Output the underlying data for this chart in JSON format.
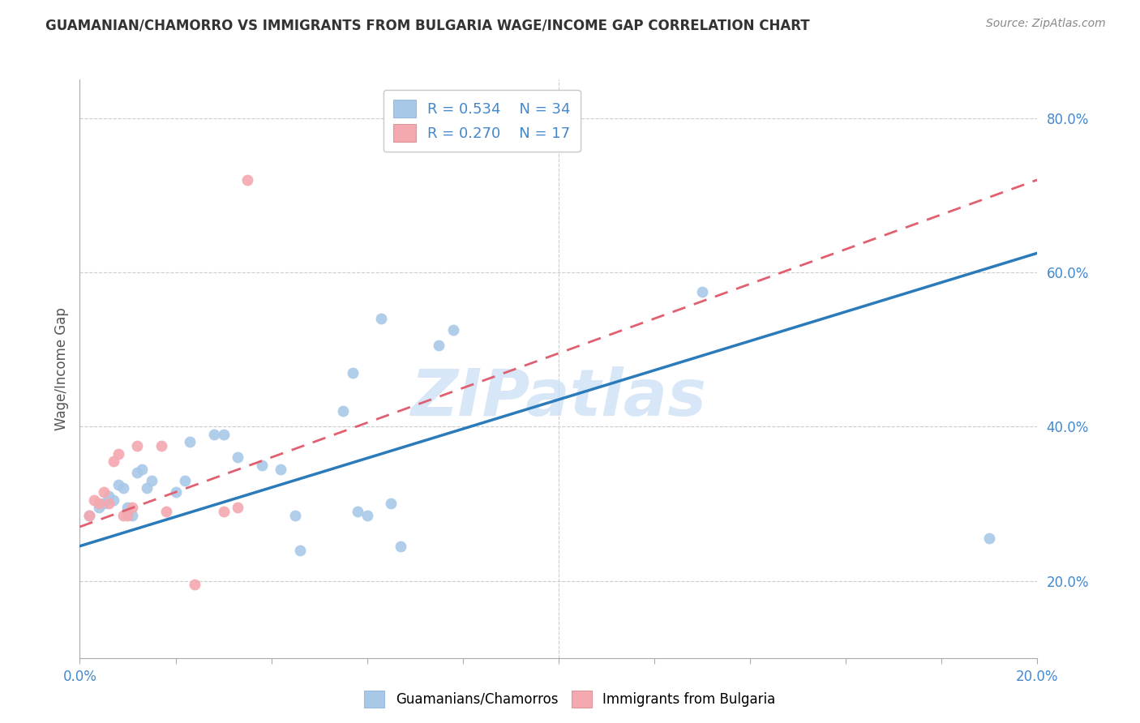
{
  "title": "GUAMANIAN/CHAMORRO VS IMMIGRANTS FROM BULGARIA WAGE/INCOME GAP CORRELATION CHART",
  "source": "Source: ZipAtlas.com",
  "ylabel": "Wage/Income Gap",
  "right_yticks": [
    0.2,
    0.4,
    0.6,
    0.8
  ],
  "right_yticklabels": [
    "20.0%",
    "40.0%",
    "60.0%",
    "80.0%"
  ],
  "legend_r1": "R = 0.534",
  "legend_n1": "N = 34",
  "legend_r2": "R = 0.270",
  "legend_n2": "N = 17",
  "legend_label1": "Guamanians/Chamorros",
  "legend_label2": "Immigrants from Bulgaria",
  "blue_color": "#a8c8e8",
  "pink_color": "#f4a8b0",
  "blue_scatter": [
    [
      0.002,
      0.285
    ],
    [
      0.004,
      0.295
    ],
    [
      0.005,
      0.3
    ],
    [
      0.006,
      0.31
    ],
    [
      0.007,
      0.305
    ],
    [
      0.008,
      0.325
    ],
    [
      0.009,
      0.32
    ],
    [
      0.01,
      0.295
    ],
    [
      0.011,
      0.285
    ],
    [
      0.012,
      0.34
    ],
    [
      0.013,
      0.345
    ],
    [
      0.014,
      0.32
    ],
    [
      0.015,
      0.33
    ],
    [
      0.02,
      0.315
    ],
    [
      0.022,
      0.33
    ],
    [
      0.023,
      0.38
    ],
    [
      0.028,
      0.39
    ],
    [
      0.03,
      0.39
    ],
    [
      0.033,
      0.36
    ],
    [
      0.038,
      0.35
    ],
    [
      0.042,
      0.345
    ],
    [
      0.045,
      0.285
    ],
    [
      0.046,
      0.24
    ],
    [
      0.055,
      0.42
    ],
    [
      0.057,
      0.47
    ],
    [
      0.058,
      0.29
    ],
    [
      0.06,
      0.285
    ],
    [
      0.063,
      0.54
    ],
    [
      0.065,
      0.3
    ],
    [
      0.067,
      0.245
    ],
    [
      0.075,
      0.505
    ],
    [
      0.078,
      0.525
    ],
    [
      0.13,
      0.575
    ],
    [
      0.19,
      0.255
    ]
  ],
  "pink_scatter": [
    [
      0.002,
      0.285
    ],
    [
      0.003,
      0.305
    ],
    [
      0.004,
      0.3
    ],
    [
      0.005,
      0.315
    ],
    [
      0.006,
      0.3
    ],
    [
      0.007,
      0.355
    ],
    [
      0.008,
      0.365
    ],
    [
      0.009,
      0.285
    ],
    [
      0.01,
      0.285
    ],
    [
      0.011,
      0.295
    ],
    [
      0.012,
      0.375
    ],
    [
      0.017,
      0.375
    ],
    [
      0.018,
      0.29
    ],
    [
      0.024,
      0.195
    ],
    [
      0.03,
      0.29
    ],
    [
      0.033,
      0.295
    ],
    [
      0.035,
      0.72
    ]
  ],
  "blue_line_x": [
    0.0,
    0.2
  ],
  "blue_line_y": [
    0.245,
    0.625
  ],
  "pink_line_x": [
    0.0,
    0.2
  ],
  "pink_line_y": [
    0.27,
    0.72
  ],
  "watermark": "ZIPatlas",
  "xmin": 0.0,
  "xmax": 0.2,
  "ymin": 0.1,
  "ymax": 0.85,
  "xtick_positions": [
    0.0,
    0.02,
    0.04,
    0.06,
    0.08,
    0.1,
    0.12,
    0.14,
    0.16,
    0.18,
    0.2
  ],
  "xtick_labels_show": [
    "0.0%",
    "",
    "",
    "",
    "",
    "",
    "",
    "",
    "",
    "",
    "20.0%"
  ]
}
